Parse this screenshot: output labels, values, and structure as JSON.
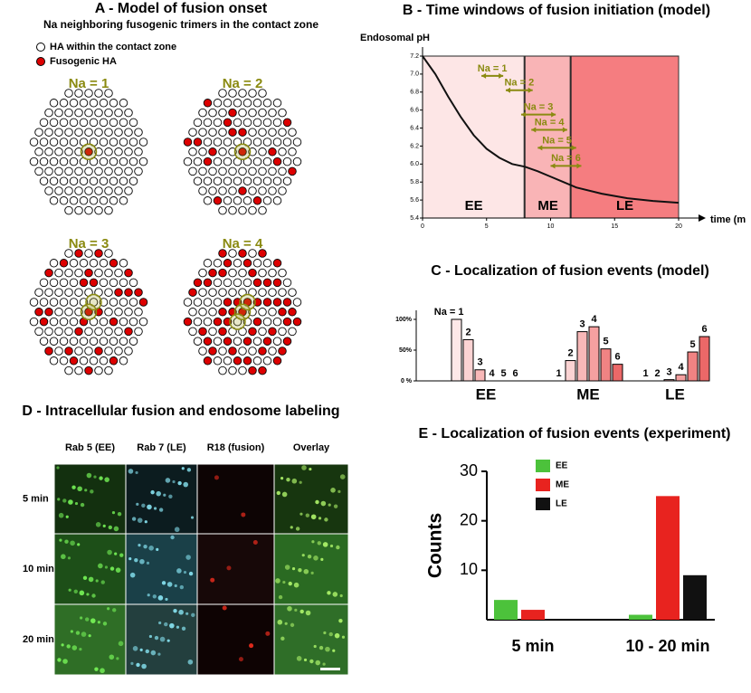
{
  "model": {
    "title": "A - Model of fusion onset",
    "subtitle": "Na neighboring fusogenic trimers in the contact zone",
    "legend": [
      "HA within the contact zone",
      "Fusogenic HA"
    ],
    "panels": [
      "Na = 1",
      "Na = 2",
      "Na = 3",
      "Na = 4"
    ]
  },
  "chart_data": [
    {
      "type": "line",
      "title": "B - Time windows of fusion initiation (model)",
      "ylabel": "Endosomal pH",
      "xlabel": "time (m",
      "x": [
        0,
        1,
        2,
        3,
        4,
        5,
        6,
        7,
        8,
        9,
        10,
        11,
        12,
        14,
        16,
        18,
        20
      ],
      "values": [
        7.2,
        7.0,
        6.75,
        6.52,
        6.32,
        6.17,
        6.07,
        6.0,
        5.97,
        5.92,
        5.86,
        5.8,
        5.74,
        5.67,
        5.62,
        5.59,
        5.57
      ],
      "color": "#111111",
      "xlim": [
        0,
        20
      ],
      "xticks": [
        0,
        5,
        10,
        15,
        20
      ],
      "ylim": [
        5.4,
        7.2
      ],
      "yticks": [
        7.2,
        {
          "value": 7,
          "label": "7.0"
        },
        6.8,
        6.6,
        6.4,
        6.2,
        {
          "value": 6,
          "label": "6.0"
        },
        5.8,
        5.6,
        5.4
      ],
      "regions": [
        {
          "label": "EE",
          "start": 0,
          "end": 8,
          "color": "#fde6e6"
        },
        {
          "label": "ME",
          "start": 8,
          "end": 11.6,
          "color": "#f9b4b6"
        },
        {
          "label": "LE",
          "start": 11.6,
          "end": 20,
          "color": "#f57d80"
        }
      ],
      "windows": [
        {
          "label": "Na = 1",
          "start": 4.6,
          "end": 6.3,
          "y": 6.98
        },
        {
          "label": "Na = 2",
          "start": 6.5,
          "end": 8.6,
          "y": 6.82
        },
        {
          "label": "Na = 3",
          "start": 7.7,
          "end": 10.4,
          "y": 6.55
        },
        {
          "label": "Na = 4",
          "start": 8.5,
          "end": 11.3,
          "y": 6.38
        },
        {
          "label": "Na = 5",
          "start": 9.0,
          "end": 12.0,
          "y": 6.18
        },
        {
          "label": "Na = 6",
          "start": 10.0,
          "end": 12.4,
          "y": 5.98
        }
      ],
      "arrow_color": "#8a8a10"
    },
    {
      "type": "bar",
      "title": "C - Localization of fusion events (model)",
      "categories": [
        "EE",
        "ME",
        "LE"
      ],
      "series": [
        {
          "color": "#fde8e8",
          "values": [
            100,
            0,
            0
          ]
        },
        {
          "color": "#fbd3d3",
          "values": [
            67,
            33,
            0
          ]
        },
        {
          "color": "#f8b8b8",
          "values": [
            18,
            80,
            2
          ]
        },
        {
          "color": "#f5a0a0",
          "values": [
            0,
            88,
            10
          ]
        },
        {
          "color": "#f08383",
          "values": [
            0,
            52,
            47
          ]
        },
        {
          "color": "#eb6868",
          "values": [
            0,
            27,
            72
          ]
        }
      ],
      "bar_labels": [
        [
          "Na = 1",
          "2",
          "3",
          "4",
          "5",
          "6"
        ],
        [
          "1",
          "2",
          "3",
          "4",
          "5",
          "6"
        ],
        [
          "1",
          "2",
          "3",
          "4",
          "5",
          "6"
        ]
      ],
      "ylim": [
        0,
        100
      ],
      "yticks": [
        {
          "value": 0,
          "label": "0 %"
        },
        {
          "value": 50,
          "label": "50%"
        },
        {
          "value": 100,
          "label": "100%"
        }
      ]
    },
    {
      "type": "bar",
      "title": "E - Localization of fusion events (experiment)",
      "ylabel": "Counts",
      "categories": [
        "5 min",
        "10 - 20 min"
      ],
      "series": [
        {
          "name": "EE",
          "color": "#4cc23b",
          "values": [
            4,
            1
          ]
        },
        {
          "name": "ME",
          "color": "#e8231f",
          "values": [
            2,
            25
          ]
        },
        {
          "name": "LE",
          "color": "#111111",
          "values": [
            0,
            9
          ]
        }
      ],
      "ylim": [
        0,
        30
      ],
      "yticks": [
        10,
        20,
        30
      ],
      "legend": "top-center"
    }
  ],
  "imaging": {
    "title": "D - Intracellular fusion and endosome labeling",
    "columns": [
      "Rab 5 (EE)",
      "Rab 7 (LE)",
      "R18 (fusion)",
      "Overlay"
    ],
    "rows": [
      "5 min",
      "10 min",
      "20 min"
    ]
  }
}
